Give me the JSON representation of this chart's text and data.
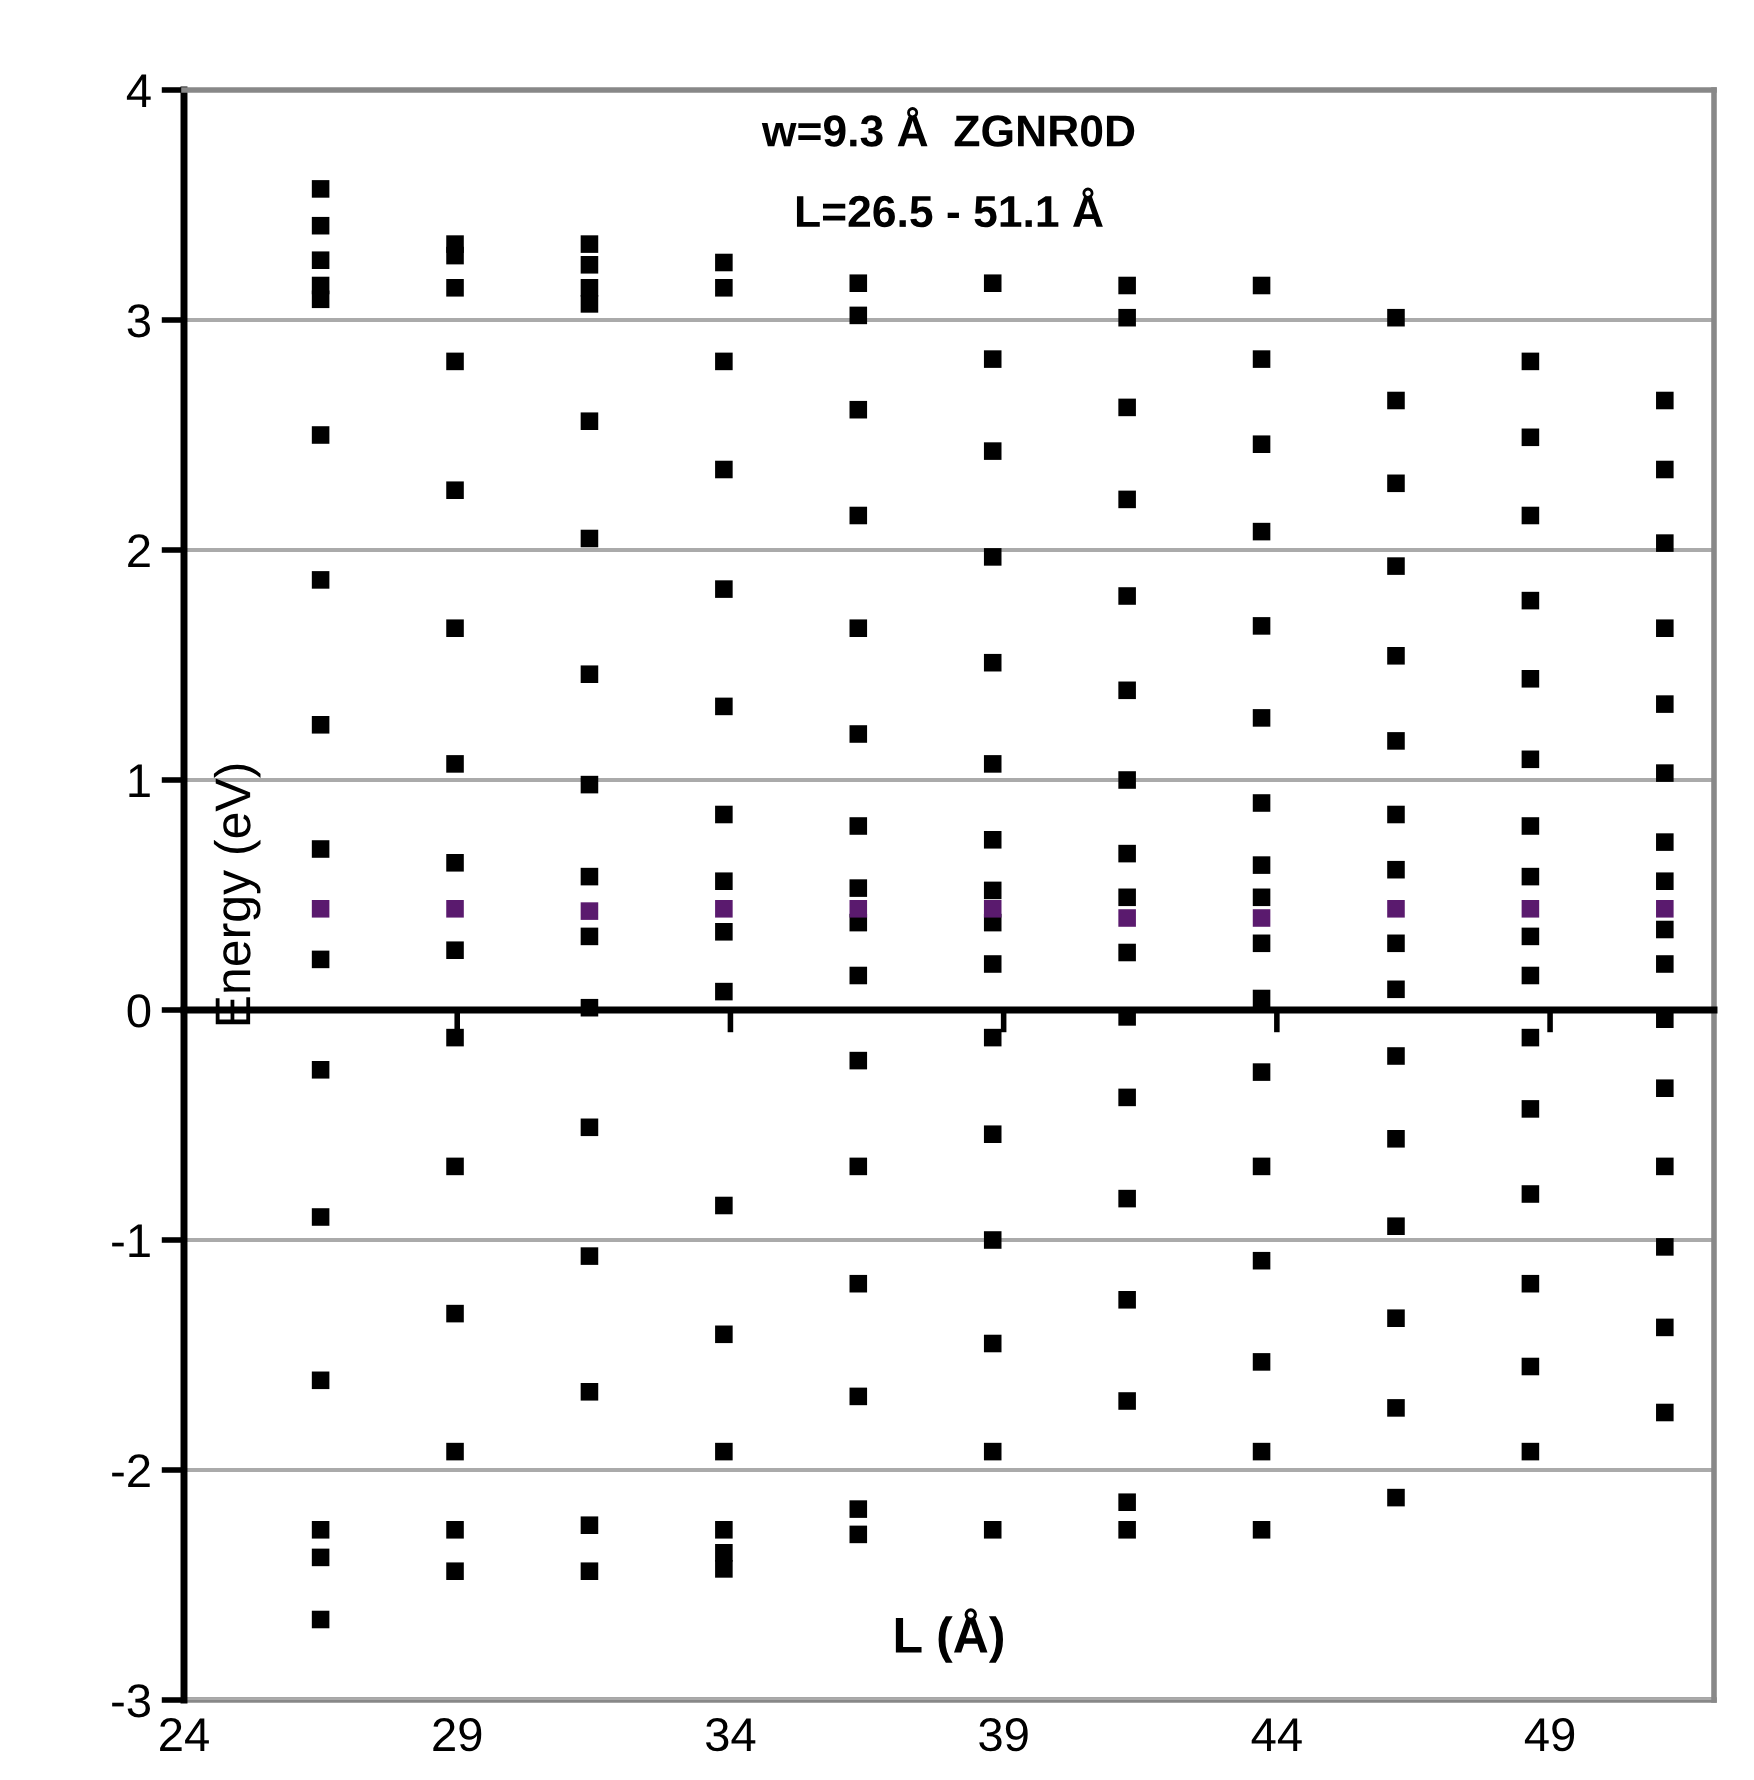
{
  "chart_data": {
    "type": "scatter",
    "title": "w=9.3 Å  ZGNR0D",
    "subtitle": "L=26.5 - 51.1 Å",
    "xlabel": "L (Å)",
    "ylabel": "Energy (eV)",
    "xlim": [
      24,
      52
    ],
    "xticks": [
      24,
      29,
      34,
      39,
      44,
      49
    ],
    "ylim": [
      -3,
      4
    ],
    "yticks": [
      -3,
      -2,
      -1,
      0,
      1,
      2,
      3,
      4
    ],
    "grid": "y",
    "marker": "square",
    "series": [
      {
        "color": "#000000",
        "x": [
          26.5,
          26.5,
          26.5,
          26.5,
          26.5,
          26.5,
          26.5,
          26.5,
          26.5,
          26.5,
          26.5,
          26.5,
          26.5,
          26.5,
          26.5,
          26.5,
          28.96,
          28.96,
          28.96,
          28.96,
          28.96,
          28.96,
          28.96,
          28.96,
          28.96,
          28.96,
          28.96,
          28.96,
          28.96,
          28.96,
          28.96,
          31.42,
          31.42,
          31.42,
          31.42,
          31.42,
          31.42,
          31.42,
          31.42,
          31.42,
          31.42,
          31.42,
          31.42,
          31.42,
          31.42,
          31.42,
          31.42,
          33.88,
          33.88,
          33.88,
          33.88,
          33.88,
          33.88,
          33.88,
          33.88,
          33.88,
          33.88,
          33.88,
          33.88,
          33.88,
          33.88,
          33.88,
          33.88,
          36.34,
          36.34,
          36.34,
          36.34,
          36.34,
          36.34,
          36.34,
          36.34,
          36.34,
          36.34,
          36.34,
          36.34,
          36.34,
          36.34,
          36.34,
          36.34,
          38.8,
          38.8,
          38.8,
          38.8,
          38.8,
          38.8,
          38.8,
          38.8,
          38.8,
          38.8,
          38.8,
          38.8,
          38.8,
          38.8,
          38.8,
          38.8,
          41.26,
          41.26,
          41.26,
          41.26,
          41.26,
          41.26,
          41.26,
          41.26,
          41.26,
          41.26,
          41.26,
          41.26,
          41.26,
          41.26,
          41.26,
          41.26,
          41.26,
          43.72,
          43.72,
          43.72,
          43.72,
          43.72,
          43.72,
          43.72,
          43.72,
          43.72,
          43.72,
          43.72,
          43.72,
          43.72,
          43.72,
          43.72,
          43.72,
          43.72,
          46.18,
          46.18,
          46.18,
          46.18,
          46.18,
          46.18,
          46.18,
          46.18,
          46.18,
          46.18,
          46.18,
          46.18,
          46.18,
          46.18,
          46.18,
          46.18,
          48.64,
          48.64,
          48.64,
          48.64,
          48.64,
          48.64,
          48.64,
          48.64,
          48.64,
          48.64,
          48.64,
          48.64,
          48.64,
          48.64,
          48.64,
          48.64,
          51.1,
          51.1,
          51.1,
          51.1,
          51.1,
          51.1,
          51.1,
          51.1,
          51.1,
          51.1,
          51.1,
          51.1,
          51.1,
          51.1,
          51.1,
          51.1
        ],
        "values": [
          3.57,
          3.41,
          3.26,
          3.15,
          3.09,
          2.5,
          1.87,
          1.24,
          0.7,
          0.22,
          -0.26,
          -0.9,
          -1.61,
          -2.26,
          -2.38,
          -2.65,
          3.33,
          3.28,
          3.14,
          2.82,
          2.26,
          1.66,
          1.07,
          0.64,
          0.26,
          -0.12,
          -0.68,
          -1.32,
          -1.92,
          -2.26,
          -2.44,
          3.33,
          3.24,
          3.14,
          3.07,
          2.56,
          2.05,
          1.46,
          0.98,
          0.58,
          0.32,
          0.01,
          -0.51,
          -1.07,
          -1.66,
          -2.24,
          -2.44,
          3.25,
          3.14,
          2.82,
          2.35,
          1.83,
          1.32,
          0.85,
          0.56,
          0.34,
          0.08,
          -0.85,
          -1.41,
          -1.92,
          -2.26,
          -2.36,
          -2.43,
          3.16,
          3.02,
          2.61,
          2.15,
          1.66,
          1.2,
          0.8,
          0.53,
          0.38,
          0.15,
          -0.22,
          -0.68,
          -1.19,
          -1.68,
          -2.17,
          -2.28,
          3.16,
          2.83,
          2.43,
          1.97,
          1.51,
          1.07,
          0.74,
          0.52,
          0.38,
          0.2,
          -0.12,
          -0.54,
          -1.0,
          -1.45,
          -1.92,
          -2.26,
          3.15,
          3.01,
          2.62,
          2.22,
          1.8,
          1.39,
          1.0,
          0.68,
          0.49,
          0.25,
          -0.03,
          -0.38,
          -0.82,
          -1.26,
          -1.7,
          -2.14,
          -2.26,
          3.15,
          2.83,
          2.46,
          2.08,
          1.67,
          1.27,
          0.9,
          0.63,
          0.49,
          0.29,
          0.05,
          -0.27,
          -0.68,
          -1.09,
          -1.53,
          -1.92,
          -2.26,
          3.01,
          2.65,
          2.29,
          1.93,
          1.54,
          1.17,
          0.85,
          0.61,
          0.29,
          0.09,
          -0.2,
          -0.56,
          -0.94,
          -1.34,
          -1.73,
          -2.12,
          2.82,
          2.49,
          2.15,
          1.78,
          1.44,
          1.09,
          0.8,
          0.58,
          0.32,
          0.15,
          -0.12,
          -0.43,
          -0.8,
          -1.19,
          -1.55,
          -1.92,
          2.65,
          2.35,
          2.03,
          1.66,
          1.33,
          1.03,
          0.73,
          0.56,
          0.35,
          0.2,
          -0.04,
          -0.34,
          -0.68,
          -1.03,
          -1.38,
          -1.75
        ]
      },
      {
        "color": "#5a1a6e",
        "x": [
          26.5,
          28.96,
          31.42,
          33.88,
          36.34,
          38.8,
          41.26,
          43.72,
          46.18,
          48.64,
          51.1
        ],
        "values": [
          0.44,
          0.44,
          0.43,
          0.44,
          0.44,
          0.44,
          0.4,
          0.4,
          0.44,
          0.44,
          0.44
        ]
      }
    ]
  }
}
